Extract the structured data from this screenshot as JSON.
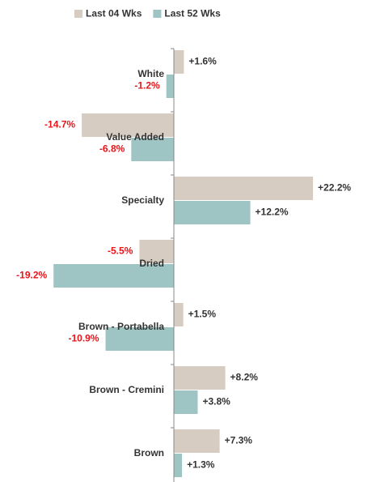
{
  "chart_data": {
    "type": "hbar",
    "categories": [
      "White",
      "Value Added",
      "Specialty",
      "Dried",
      "Brown - Portabella",
      "Brown - Cremini",
      "Brown"
    ],
    "series": [
      {
        "name": "Last 04 Wks",
        "color": "#d6ccc1",
        "values": [
          1.6,
          -14.7,
          22.2,
          -5.5,
          1.5,
          8.2,
          7.3
        ],
        "value_labels": [
          "+1.6%",
          "-14.7%",
          "+22.2%",
          "-5.5%",
          "+1.5%",
          "+8.2%",
          "+7.3%"
        ]
      },
      {
        "name": "Last 52 Wks",
        "color": "#9ec4c3",
        "values": [
          -1.2,
          -6.8,
          12.2,
          -19.2,
          -10.9,
          3.8,
          1.3
        ],
        "value_labels": [
          "-1.2%",
          "-6.8%",
          "+12.2%",
          "-19.2%",
          "-10.9%",
          "+3.8%",
          "+1.3%"
        ]
      }
    ],
    "legend": "top"
  }
}
